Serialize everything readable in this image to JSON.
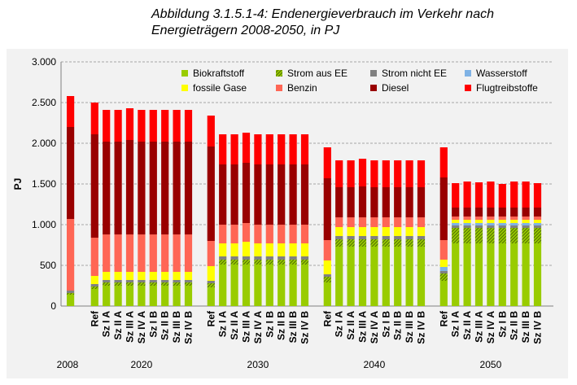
{
  "title_line1": "Abbildung 3.1.5.1-4: Endenergieverbrauch im Verkehr nach",
  "title_line2": "Energieträgern 2008-2050, in PJ",
  "chart_data": {
    "type": "bar",
    "stacked": true,
    "ylabel": "PJ",
    "ylim": [
      0,
      3000
    ],
    "yticks": [
      0,
      500,
      1000,
      1500,
      2000,
      2500,
      3000
    ],
    "ytick_labels": [
      "0",
      "500",
      "1.000",
      "1.500",
      "2.000",
      "2.500",
      "3.000"
    ],
    "grid": "horizontal dashed",
    "legend_position": "top, inside plot",
    "groups": [
      {
        "label": "2008",
        "categories": [
          ""
        ]
      },
      {
        "label": "2020",
        "categories": [
          "Ref",
          "Sz I A",
          "Sz II A",
          "Sz III A",
          "Sz IV A",
          "Sz I B",
          "Sz II B",
          "Sz III B",
          "Sz IV B"
        ]
      },
      {
        "label": "2030",
        "categories": [
          "Ref",
          "Sz I A",
          "Sz II A",
          "Sz III A",
          "Sz IV A",
          "Sz I B",
          "Sz II B",
          "Sz III B",
          "Sz IV B"
        ]
      },
      {
        "label": "2040",
        "categories": [
          "Ref",
          "Sz I A",
          "Sz II A",
          "Sz III A",
          "Sz IV A",
          "Sz I B",
          "Sz II B",
          "Sz III B",
          "Sz IV B"
        ]
      },
      {
        "label": "2050",
        "categories": [
          "Ref",
          "Sz I A",
          "Sz II A",
          "Sz III A",
          "Sz IV A",
          "Sz I B",
          "Sz II B",
          "Sz III B",
          "Sz IV B"
        ]
      }
    ],
    "series": [
      {
        "name": "Biokraftstoff",
        "color": "#99cc00",
        "pattern": "solid",
        "values": [
          140,
          210,
          250,
          250,
          250,
          250,
          250,
          250,
          250,
          250,
          230,
          510,
          510,
          510,
          510,
          510,
          510,
          510,
          510,
          290,
          730,
          730,
          730,
          730,
          730,
          730,
          730,
          730,
          310,
          770,
          770,
          770,
          770,
          770,
          770,
          770,
          770
        ]
      },
      {
        "name": "Strom aus EE",
        "color": "#99cc00",
        "pattern": "hatched",
        "values": [
          20,
          30,
          40,
          40,
          40,
          40,
          40,
          40,
          40,
          40,
          50,
          60,
          60,
          60,
          60,
          60,
          60,
          60,
          60,
          70,
          90,
          90,
          90,
          90,
          90,
          90,
          90,
          90,
          90,
          190,
          190,
          190,
          190,
          190,
          190,
          190,
          190
        ]
      },
      {
        "name": "Strom nicht EE",
        "color": "#808080",
        "pattern": "solid",
        "values": [
          30,
          30,
          30,
          30,
          30,
          30,
          30,
          30,
          30,
          30,
          30,
          40,
          40,
          40,
          40,
          40,
          40,
          40,
          40,
          30,
          40,
          40,
          40,
          40,
          40,
          40,
          40,
          40,
          30,
          30,
          30,
          30,
          30,
          30,
          30,
          30,
          30
        ]
      },
      {
        "name": "Wasserstoff",
        "color": "#7fb2e5",
        "pattern": "solid",
        "values": [
          0,
          0,
          0,
          0,
          0,
          0,
          0,
          0,
          0,
          0,
          0,
          0,
          0,
          0,
          0,
          0,
          0,
          0,
          0,
          0,
          0,
          0,
          0,
          0,
          0,
          0,
          0,
          0,
          50,
          30,
          30,
          30,
          30,
          30,
          30,
          30,
          30
        ]
      },
      {
        "name": "fossile Gase",
        "color": "#ffff00",
        "pattern": "solid",
        "values": [
          0,
          100,
          100,
          100,
          100,
          100,
          100,
          100,
          100,
          100,
          180,
          160,
          160,
          180,
          160,
          160,
          160,
          160,
          160,
          170,
          110,
          110,
          110,
          110,
          110,
          110,
          110,
          110,
          90,
          40,
          40,
          40,
          40,
          40,
          40,
          40,
          40
        ]
      },
      {
        "name": "Benzin",
        "color": "#ff6655",
        "pattern": "solid",
        "values": [
          880,
          470,
          460,
          460,
          460,
          460,
          460,
          460,
          460,
          460,
          310,
          230,
          230,
          230,
          230,
          230,
          230,
          230,
          230,
          250,
          120,
          120,
          120,
          120,
          120,
          120,
          120,
          120,
          240,
          40,
          40,
          40,
          40,
          40,
          40,
          40,
          40
        ]
      },
      {
        "name": "Diesel",
        "color": "#990000",
        "pattern": "solid",
        "values": [
          1130,
          1270,
          1140,
          1140,
          1160,
          1140,
          1140,
          1140,
          1140,
          1140,
          1160,
          740,
          740,
          740,
          740,
          740,
          740,
          740,
          740,
          760,
          370,
          370,
          380,
          370,
          370,
          370,
          370,
          370,
          770,
          110,
          110,
          110,
          110,
          110,
          110,
          110,
          110
        ]
      },
      {
        "name": "Flugtreibstoffe",
        "color": "#ff0000",
        "pattern": "solid",
        "values": [
          380,
          390,
          390,
          390,
          390,
          390,
          390,
          390,
          390,
          390,
          380,
          370,
          370,
          370,
          370,
          370,
          370,
          370,
          370,
          380,
          330,
          330,
          340,
          330,
          330,
          330,
          330,
          330,
          370,
          300,
          320,
          310,
          320,
          290,
          320,
          320,
          300
        ]
      }
    ]
  }
}
